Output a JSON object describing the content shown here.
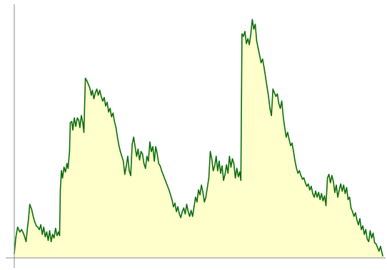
{
  "chart_data": {
    "type": "area",
    "title": "",
    "xlabel": "",
    "ylabel": "",
    "xlim": [
      0,
      100
    ],
    "ylim": [
      0,
      100
    ],
    "grid": false,
    "legend": "none",
    "series": [
      {
        "color": "#0a6b0a",
        "fill": "#ffffcc",
        "points": [
          [
            0,
            1.5
          ],
          [
            0.4,
            8
          ],
          [
            0.9,
            12.5
          ],
          [
            1.5,
            10.5
          ],
          [
            2.0,
            11.5
          ],
          [
            2.6,
            9.5
          ],
          [
            3.2,
            6.5
          ],
          [
            3.6,
            12.5
          ],
          [
            3.9,
            16.5
          ],
          [
            4.2,
            22
          ],
          [
            4.7,
            20
          ],
          [
            5.2,
            16.5
          ],
          [
            5.6,
            14.5
          ],
          [
            6.0,
            13
          ],
          [
            6.4,
            12.5
          ],
          [
            6.8,
            11.5
          ],
          [
            7.2,
            13.5
          ],
          [
            7.6,
            9.5
          ],
          [
            8.0,
            12.5
          ],
          [
            8.4,
            8.5
          ],
          [
            8.8,
            10.5
          ],
          [
            9.2,
            7
          ],
          [
            9.6,
            11
          ],
          [
            10.0,
            6.5
          ],
          [
            10.4,
            9.5
          ],
          [
            10.8,
            8
          ],
          [
            11.2,
            12
          ],
          [
            11.6,
            9
          ],
          [
            12.0,
            10.5
          ],
          [
            12.3,
            9
          ],
          [
            12.5,
            28
          ],
          [
            12.8,
            36
          ],
          [
            13.1,
            33
          ],
          [
            13.5,
            37.5
          ],
          [
            13.9,
            35.5
          ],
          [
            14.3,
            39
          ],
          [
            14.6,
            37
          ],
          [
            15.0,
            44
          ],
          [
            15.2,
            56
          ],
          [
            15.6,
            56.5
          ],
          [
            15.9,
            53
          ],
          [
            16.3,
            58
          ],
          [
            16.7,
            54.5
          ],
          [
            17.1,
            58
          ],
          [
            17.5,
            57
          ],
          [
            17.8,
            54
          ],
          [
            18.2,
            59
          ],
          [
            18.6,
            56
          ],
          [
            18.9,
            52
          ],
          [
            19.3,
            74.5
          ],
          [
            19.7,
            73.5
          ],
          [
            20.1,
            72
          ],
          [
            20.5,
            70.5
          ],
          [
            20.9,
            67.5
          ],
          [
            21.2,
            69.5
          ],
          [
            21.6,
            66
          ],
          [
            22.0,
            68.5
          ],
          [
            22.4,
            70
          ],
          [
            22.8,
            67.5
          ],
          [
            23.2,
            69.5
          ],
          [
            23.6,
            67
          ],
          [
            24.0,
            65
          ],
          [
            24.4,
            66.5
          ],
          [
            24.8,
            63
          ],
          [
            25.2,
            64.5
          ],
          [
            25.6,
            60.5
          ],
          [
            26.0,
            62
          ],
          [
            26.4,
            58.5
          ],
          [
            26.8,
            60
          ],
          [
            27.2,
            56.5
          ],
          [
            27.6,
            54
          ],
          [
            28.0,
            50
          ],
          [
            28.4,
            46.5
          ],
          [
            28.8,
            44
          ],
          [
            29.2,
            42
          ],
          [
            29.6,
            40
          ],
          [
            30.0,
            34.5
          ],
          [
            30.4,
            38
          ],
          [
            30.8,
            42
          ],
          [
            31.2,
            36
          ],
          [
            31.6,
            34
          ],
          [
            32.0,
            47
          ],
          [
            32.4,
            50
          ],
          [
            32.8,
            46
          ],
          [
            33.2,
            42
          ],
          [
            33.6,
            45
          ],
          [
            34.0,
            40.5
          ],
          [
            34.4,
            44
          ],
          [
            34.8,
            43
          ],
          [
            35.2,
            39
          ],
          [
            35.6,
            37
          ],
          [
            36.0,
            42
          ],
          [
            36.4,
            40
          ],
          [
            36.8,
            48
          ],
          [
            37.2,
            44
          ],
          [
            37.6,
            46
          ],
          [
            38.0,
            40
          ],
          [
            38.4,
            46
          ],
          [
            38.8,
            43
          ],
          [
            39.2,
            39
          ],
          [
            39.6,
            38
          ],
          [
            40.0,
            36
          ],
          [
            40.5,
            34
          ],
          [
            41.0,
            32
          ],
          [
            41.5,
            30
          ],
          [
            42.0,
            28
          ],
          [
            42.4,
            26
          ],
          [
            42.8,
            24
          ],
          [
            43.2,
            21
          ],
          [
            43.6,
            22.5
          ],
          [
            44.0,
            19
          ],
          [
            44.4,
            21
          ],
          [
            44.8,
            18
          ],
          [
            45.2,
            16.5
          ],
          [
            45.6,
            19
          ],
          [
            46.0,
            20.5
          ],
          [
            46.4,
            18
          ],
          [
            46.8,
            22
          ],
          [
            47.2,
            19
          ],
          [
            47.6,
            17
          ],
          [
            48.0,
            19.5
          ],
          [
            48.4,
            17
          ],
          [
            48.8,
            21
          ],
          [
            49.2,
            25
          ],
          [
            49.6,
            23
          ],
          [
            50.0,
            28
          ],
          [
            50.4,
            26
          ],
          [
            50.8,
            30
          ],
          [
            51.2,
            27
          ],
          [
            51.6,
            23
          ],
          [
            52.0,
            25
          ],
          [
            52.4,
            29
          ],
          [
            52.8,
            33
          ],
          [
            53.2,
            44
          ],
          [
            53.6,
            41
          ],
          [
            54.0,
            36
          ],
          [
            54.4,
            38
          ],
          [
            54.8,
            42
          ],
          [
            55.2,
            36
          ],
          [
            55.6,
            40
          ],
          [
            56.0,
            35
          ],
          [
            56.4,
            38
          ],
          [
            56.8,
            32
          ],
          [
            57.2,
            34.5
          ],
          [
            57.6,
            38.5
          ],
          [
            58.0,
            35
          ],
          [
            58.4,
            42
          ],
          [
            58.8,
            37.5
          ],
          [
            59.2,
            41
          ],
          [
            59.6,
            39
          ],
          [
            60.0,
            33
          ],
          [
            60.4,
            37
          ],
          [
            60.8,
            33.5
          ],
          [
            61.2,
            35.5
          ],
          [
            61.5,
            32
          ],
          [
            61.8,
            93
          ],
          [
            62.2,
            92
          ],
          [
            62.6,
            94
          ],
          [
            63.0,
            89
          ],
          [
            63.4,
            91
          ],
          [
            63.8,
            88.5
          ],
          [
            64.2,
            93
          ],
          [
            64.6,
            99
          ],
          [
            65.0,
            95
          ],
          [
            65.4,
            97
          ],
          [
            65.8,
            90
          ],
          [
            66.2,
            87
          ],
          [
            66.6,
            84
          ],
          [
            67.0,
            81
          ],
          [
            67.4,
            82.5
          ],
          [
            67.8,
            79
          ],
          [
            68.2,
            75
          ],
          [
            68.6,
            71
          ],
          [
            69.0,
            67
          ],
          [
            69.4,
            62
          ],
          [
            69.8,
            59
          ],
          [
            70.2,
            70
          ],
          [
            70.6,
            68.5
          ],
          [
            71.0,
            67
          ],
          [
            71.4,
            68
          ],
          [
            71.8,
            64
          ],
          [
            72.2,
            62
          ],
          [
            72.6,
            65
          ],
          [
            73.0,
            58.5
          ],
          [
            73.4,
            54
          ],
          [
            73.8,
            50
          ],
          [
            74.2,
            52
          ],
          [
            74.6,
            49
          ],
          [
            75.0,
            46.5
          ],
          [
            75.4,
            47.5
          ],
          [
            75.8,
            44
          ],
          [
            76.2,
            40
          ],
          [
            76.6,
            37
          ],
          [
            77.0,
            35
          ],
          [
            77.4,
            36
          ],
          [
            77.8,
            34
          ],
          [
            78.2,
            32.5
          ],
          [
            78.6,
            33
          ],
          [
            79.0,
            31
          ],
          [
            79.4,
            29.5
          ],
          [
            79.8,
            30.5
          ],
          [
            80.2,
            28
          ],
          [
            80.6,
            29.5
          ],
          [
            81.0,
            26.5
          ],
          [
            81.4,
            25
          ],
          [
            81.8,
            27.5
          ],
          [
            82.2,
            25
          ],
          [
            82.6,
            27
          ],
          [
            83.0,
            24
          ],
          [
            83.4,
            26.5
          ],
          [
            83.8,
            23.5
          ],
          [
            84.2,
            25.5
          ],
          [
            84.6,
            21.5
          ],
          [
            85.0,
            33
          ],
          [
            85.4,
            34.5
          ],
          [
            85.8,
            31
          ],
          [
            86.2,
            34
          ],
          [
            86.6,
            31.5
          ],
          [
            87.0,
            27
          ],
          [
            87.4,
            30
          ],
          [
            87.8,
            25
          ],
          [
            88.2,
            28
          ],
          [
            88.6,
            30.5
          ],
          [
            89.0,
            27.5
          ],
          [
            89.4,
            30
          ],
          [
            89.8,
            26.5
          ],
          [
            90.2,
            29
          ],
          [
            90.6,
            24
          ],
          [
            91.0,
            25
          ],
          [
            91.4,
            20.5
          ],
          [
            91.8,
            19
          ],
          [
            92.2,
            17
          ],
          [
            92.6,
            18.5
          ],
          [
            93.0,
            15.5
          ],
          [
            93.4,
            13.5
          ],
          [
            93.8,
            16
          ],
          [
            94.2,
            11.5
          ],
          [
            94.6,
            13
          ],
          [
            95.0,
            9.5
          ],
          [
            95.4,
            11.5
          ],
          [
            95.8,
            7.5
          ],
          [
            96.2,
            6.5
          ],
          [
            96.6,
            11
          ],
          [
            97.0,
            8
          ],
          [
            97.4,
            10
          ],
          [
            97.8,
            6
          ],
          [
            98.2,
            5.5
          ],
          [
            98.6,
            4
          ],
          [
            99.0,
            2.5
          ],
          [
            99.4,
            4.5
          ],
          [
            99.7,
            2.5
          ],
          [
            100,
            0.5
          ]
        ]
      }
    ]
  }
}
